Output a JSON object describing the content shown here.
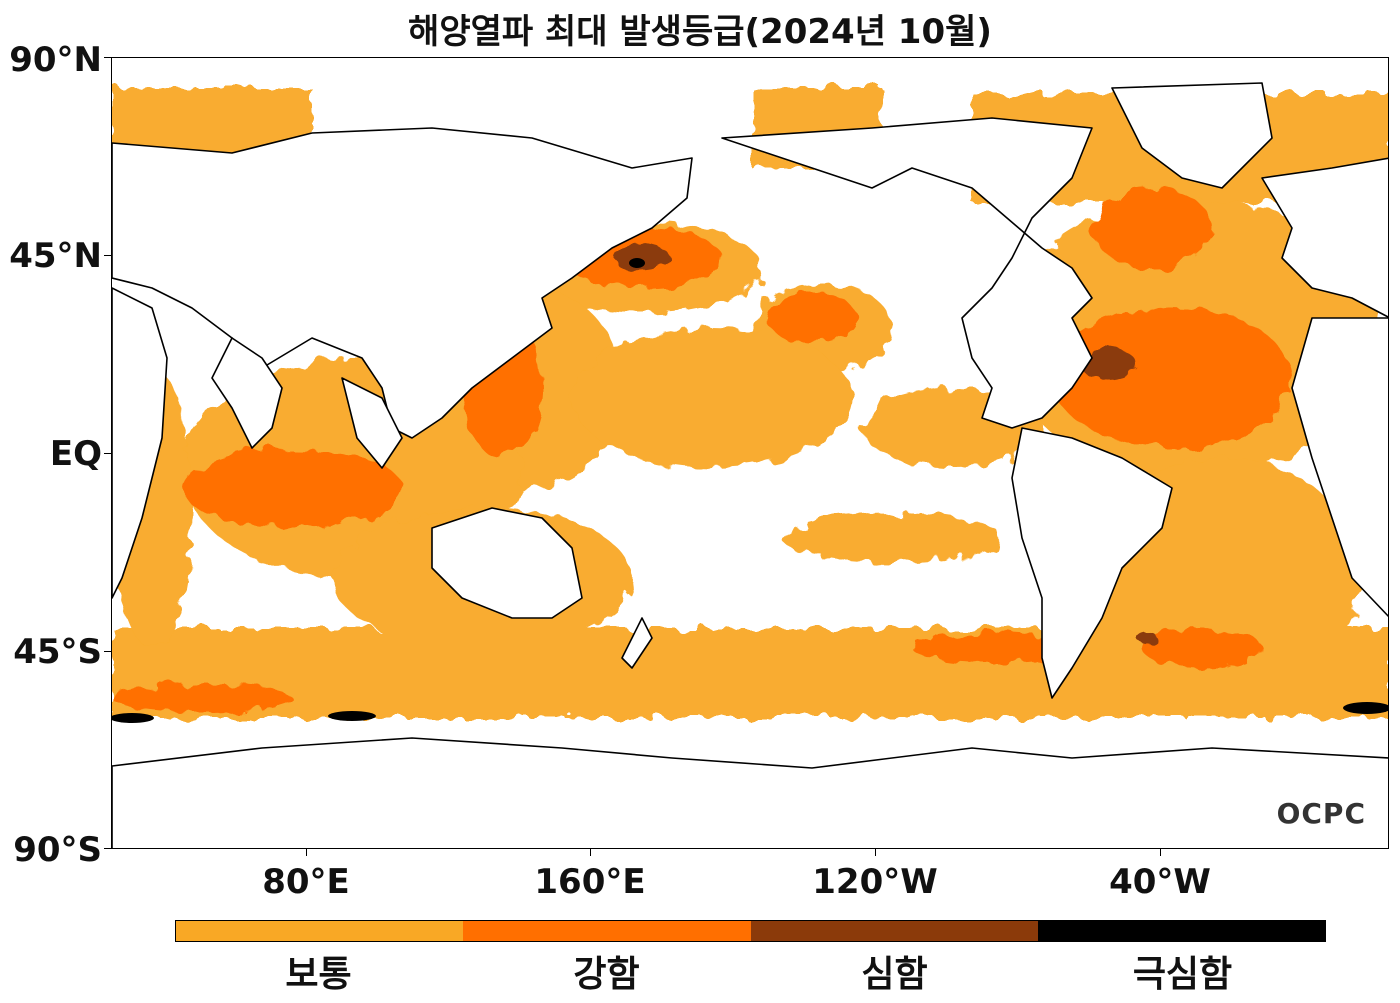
{
  "title": "해양열파 최대 발생등급(2024년 10월)",
  "lat_labels": [
    "90°N",
    "45°N",
    "EQ",
    "45°S",
    "90°S"
  ],
  "lon_labels": [
    "80°E",
    "160°E",
    "120°W",
    "40°W"
  ],
  "legend": {
    "categories": [
      {
        "label": "보통",
        "color": "#F9A825"
      },
      {
        "label": "강함",
        "color": "#FF6F00"
      },
      {
        "label": "심함",
        "color": "#8B3A0A"
      },
      {
        "label": "극심함",
        "color": "#000000"
      }
    ]
  },
  "logo": "OCPC",
  "colors": {
    "land": "#ffffff",
    "ocean": "#ffffff",
    "coast": "#000000"
  }
}
